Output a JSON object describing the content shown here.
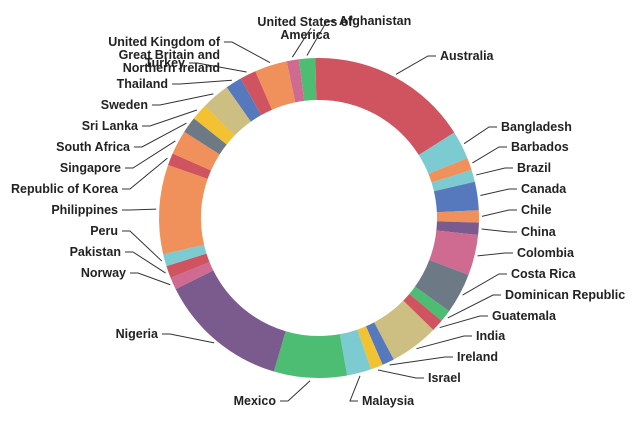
{
  "chart_data": {
    "type": "pie",
    "donut": true,
    "start_angle_deg": -7.2,
    "direction": "clockwise",
    "slices": [
      {
        "label": "Afghanistan",
        "value": 2.0,
        "color": "#4dbd74"
      },
      {
        "label": "Australia",
        "value": 20.0,
        "color": "#d0545f"
      },
      {
        "label": "Bangladesh",
        "value": 3.5,
        "color": "#7ccbd1"
      },
      {
        "label": "Barbados",
        "value": 1.5,
        "color": "#f0905a"
      },
      {
        "label": "Brazil",
        "value": 1.5,
        "color": "#7ccbd1"
      },
      {
        "label": "Canada",
        "value": 3.5,
        "color": "#5679bd"
      },
      {
        "label": "Chile",
        "value": 1.5,
        "color": "#f0905a"
      },
      {
        "label": "China",
        "value": 1.5,
        "color": "#7b5a8e"
      },
      {
        "label": "Colombia",
        "value": 5.0,
        "color": "#cf6a91"
      },
      {
        "label": "Costa Rica",
        "value": 5.0,
        "color": "#6d7a85"
      },
      {
        "label": "Dominican Republic",
        "value": 1.5,
        "color": "#4dbd74"
      },
      {
        "label": "Guatemala",
        "value": 1.5,
        "color": "#d0545f"
      },
      {
        "label": "India",
        "value": 6.0,
        "color": "#cdbf82"
      },
      {
        "label": "Ireland",
        "value": 1.5,
        "color": "#5679bd"
      },
      {
        "label": "Israel",
        "value": 1.5,
        "color": "#f2c232"
      },
      {
        "label": "Malaysia",
        "value": 3.0,
        "color": "#7ccbd1"
      },
      {
        "label": "Mexico",
        "value": 9.0,
        "color": "#4dbd74"
      },
      {
        "label": "Nigeria",
        "value": 16.0,
        "color": "#7b5a8e"
      },
      {
        "label": "Norway",
        "value": 1.5,
        "color": "#cf6a91"
      },
      {
        "label": "Pakistan",
        "value": 1.5,
        "color": "#d0545f"
      },
      {
        "label": "Peru",
        "value": 1.5,
        "color": "#7ccbd1"
      },
      {
        "label": "Philippines",
        "value": 11.0,
        "color": "#f0905a"
      },
      {
        "label": "Republic of Korea",
        "value": 1.5,
        "color": "#d0545f"
      },
      {
        "label": "Singapore",
        "value": 3.0,
        "color": "#f0905a"
      },
      {
        "label": "South Africa",
        "value": 2.0,
        "color": "#6d7a85"
      },
      {
        "label": "Sri Lanka",
        "value": 2.0,
        "color": "#f2c232"
      },
      {
        "label": "Sweden",
        "value": 3.5,
        "color": "#cdbf82"
      },
      {
        "label": "Thailand",
        "value": 2.0,
        "color": "#5679bd"
      },
      {
        "label": "Turkey",
        "value": 2.0,
        "color": "#d0545f"
      },
      {
        "label": "United Kingdom of Great Britain and Northern Ireland",
        "display": [
          "United Kingdom of",
          "Great Britain and",
          "Northern Ireland"
        ],
        "value": 4.0,
        "color": "#f0905a"
      },
      {
        "label": "United States of America",
        "display": [
          "United States of",
          "America"
        ],
        "value": 1.5,
        "color": "#cf6a91"
      }
    ]
  }
}
